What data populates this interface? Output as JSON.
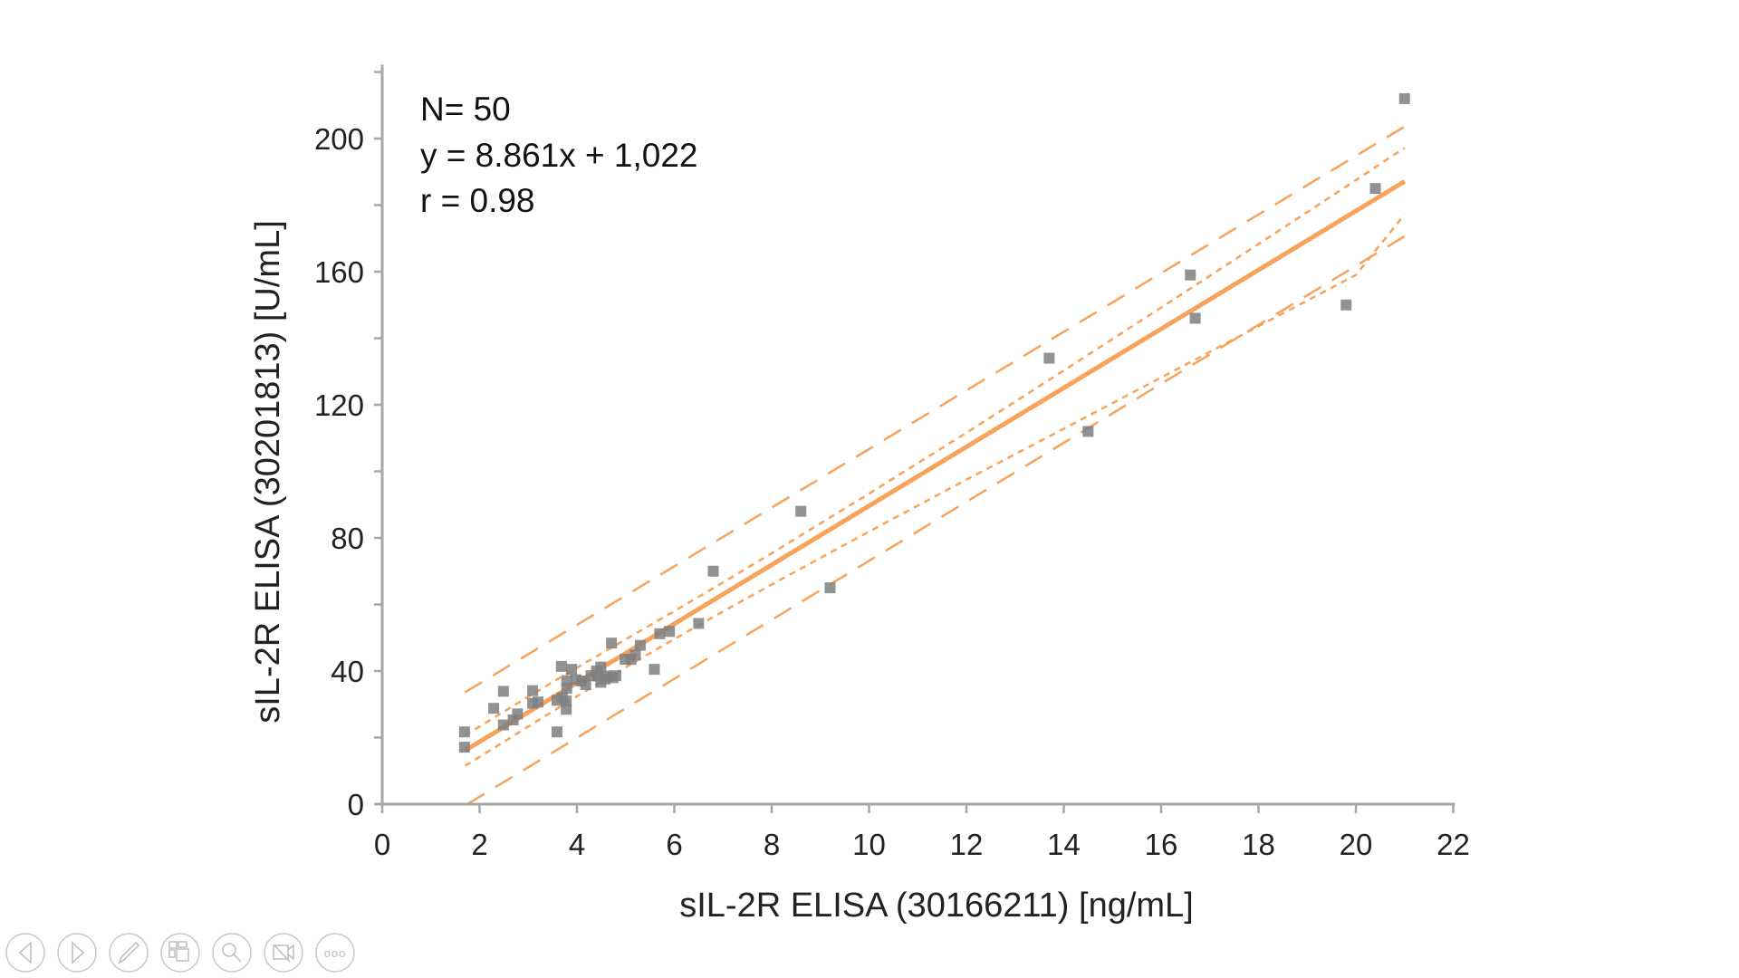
{
  "chart_data": {
    "type": "scatter",
    "xlabel": "sIL-2R ELISA (30166211) [ng/mL]",
    "ylabel": "sIL-2R ELISA (30201813) [U/mL]",
    "xlim": [
      0,
      22
    ],
    "ylim": [
      0,
      220
    ],
    "xticks": [
      "0",
      "2",
      "4",
      "6",
      "8",
      "10",
      "12",
      "14",
      "16",
      "18",
      "20",
      "22"
    ],
    "yticks": [
      "0",
      "40",
      "80",
      "120",
      "160",
      "200"
    ],
    "grid": false,
    "legend": "none",
    "annotations": [
      "N= 50",
      "y = 8.861x + 1,022",
      "r = 0.98"
    ],
    "colors": {
      "points": "#7f7f7f",
      "fit": "#f7a35c",
      "axis": "#a6a6a6"
    },
    "points": [
      [
        1.69,
        21.7
      ],
      [
        1.69,
        17.1
      ],
      [
        2.29,
        28.8
      ],
      [
        2.49,
        33.9
      ],
      [
        2.49,
        23.8
      ],
      [
        2.69,
        25.3
      ],
      [
        2.78,
        27.1
      ],
      [
        3.09,
        34.1
      ],
      [
        3.09,
        30.3
      ],
      [
        3.2,
        30.7
      ],
      [
        3.59,
        21.7
      ],
      [
        3.59,
        31.2
      ],
      [
        3.68,
        41.4
      ],
      [
        3.7,
        32.0
      ],
      [
        3.78,
        28.5
      ],
      [
        3.78,
        31.0
      ],
      [
        3.79,
        34.8
      ],
      [
        3.79,
        37.1
      ],
      [
        3.89,
        40.5
      ],
      [
        3.98,
        37.4
      ],
      [
        4.1,
        37.0
      ],
      [
        4.18,
        35.9
      ],
      [
        4.29,
        38.6
      ],
      [
        4.4,
        40.0
      ],
      [
        4.43,
        38.5
      ],
      [
        4.49,
        41.2
      ],
      [
        4.49,
        36.6
      ],
      [
        4.58,
        37.6
      ],
      [
        4.6,
        38.5
      ],
      [
        4.71,
        48.4
      ],
      [
        4.74,
        38.0
      ],
      [
        4.8,
        38.6
      ],
      [
        4.99,
        43.5
      ],
      [
        5.11,
        43.5
      ],
      [
        5.2,
        44.8
      ],
      [
        5.3,
        47.7
      ],
      [
        5.59,
        40.5
      ],
      [
        5.7,
        51.2
      ],
      [
        5.9,
        51.9
      ],
      [
        6.5,
        54.3
      ],
      [
        6.8,
        70
      ],
      [
        8.6,
        88
      ],
      [
        9.2,
        65
      ],
      [
        13.7,
        134
      ],
      [
        14.5,
        112
      ],
      [
        16.6,
        159
      ],
      [
        16.7,
        146
      ],
      [
        19.8,
        150
      ],
      [
        20.4,
        185
      ],
      [
        21.0,
        212
      ]
    ],
    "fit_line": {
      "slope": 8.861,
      "intercept": 1.022,
      "x_range": [
        1.7,
        21.0
      ]
    },
    "prediction_band": {
      "upper": [
        [
          1.7,
          33.6
        ],
        [
          21.0,
          203.6
        ]
      ],
      "lower": [
        [
          1.75,
          0.0
        ],
        [
          21.0,
          170.6
        ]
      ]
    },
    "confidence_band": {
      "x": [
        1.7,
        3,
        4,
        5,
        6,
        7,
        8,
        10,
        12,
        14,
        16,
        18,
        20,
        21
      ],
      "upper": [
        20.6,
        32.3,
        41.0,
        49.5,
        58.0,
        66.6,
        75.4,
        93.3,
        111.6,
        130.3,
        149.2,
        168.3,
        187.5,
        197.2
      ],
      "lower": [
        11.5,
        23.3,
        32.4,
        41.1,
        49.6,
        57.9,
        66.0,
        81.9,
        97.5,
        112.8,
        128.2,
        143.6,
        159.0,
        177.2
      ]
    }
  },
  "toolbar": {
    "icons": [
      "previous-icon",
      "next-icon",
      "pen-icon",
      "slides-grid-icon",
      "zoom-icon",
      "video-off-icon",
      "more-icon"
    ],
    "more_label": "ooo"
  }
}
